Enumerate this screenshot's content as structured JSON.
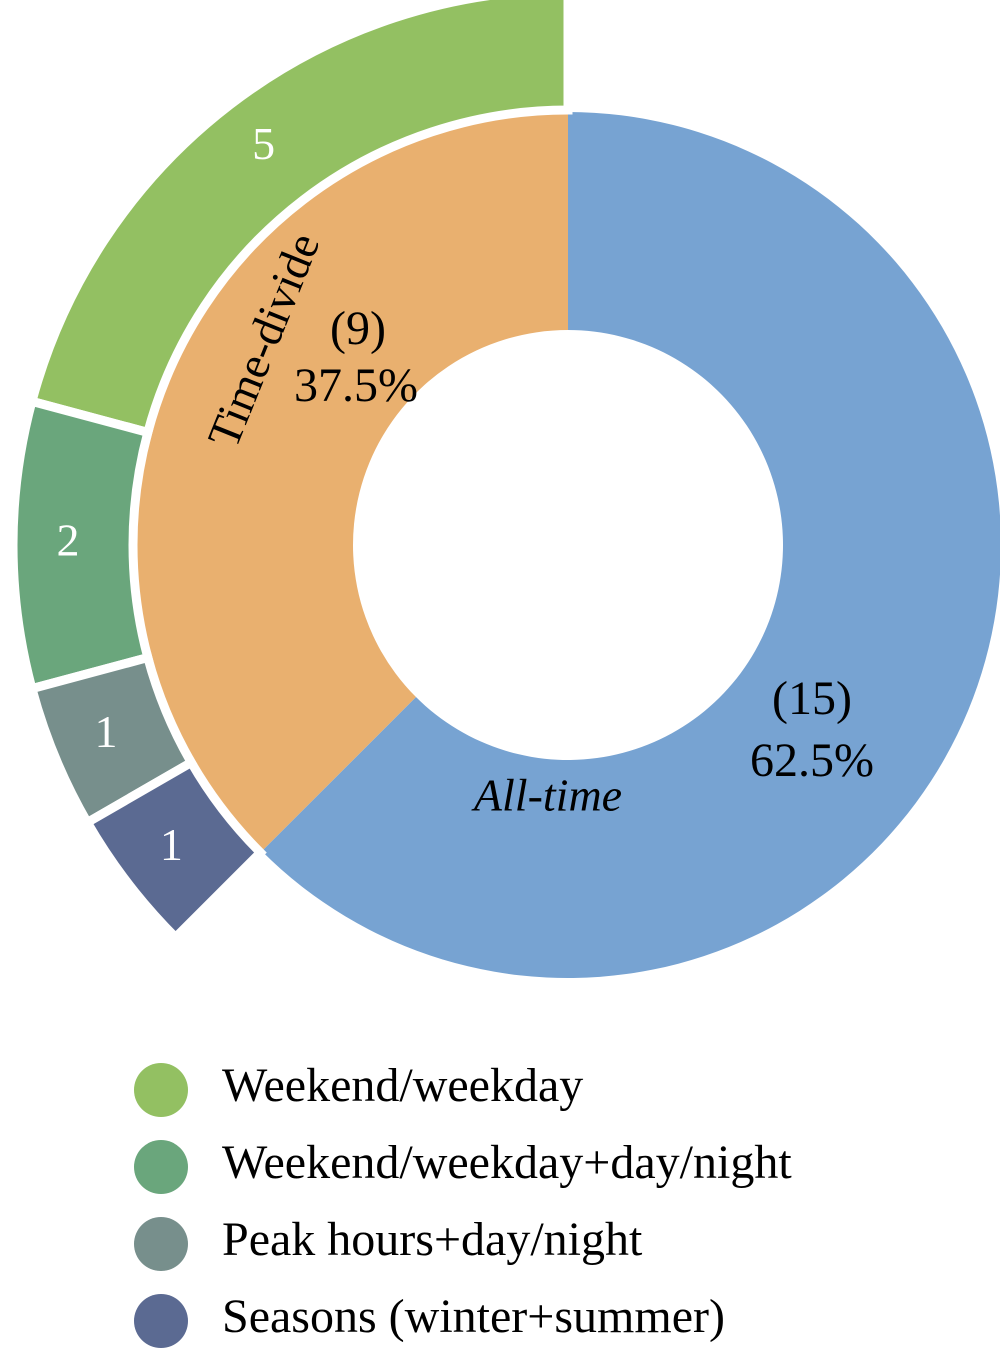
{
  "chart_data": {
    "type": "sunburst",
    "inner": {
      "categories": [
        "All-time",
        "Time-divide"
      ],
      "values": [
        15,
        9
      ],
      "value_labels": [
        "(15)",
        "(9)"
      ],
      "percent_labels": [
        "62.5%",
        "37.5%"
      ],
      "colors": [
        "#77a3d2",
        "#e9b06f"
      ]
    },
    "outer": {
      "categories": [
        "Weekend/weekday",
        "Weekend/weekday+day/night",
        "Peak hours+day/night",
        "Seasons (winter+summer)"
      ],
      "values": [
        5,
        2,
        1,
        1
      ],
      "colors": [
        "#93c062",
        "#6aa67c",
        "#778f8c",
        "#5b6a92"
      ]
    }
  }
}
